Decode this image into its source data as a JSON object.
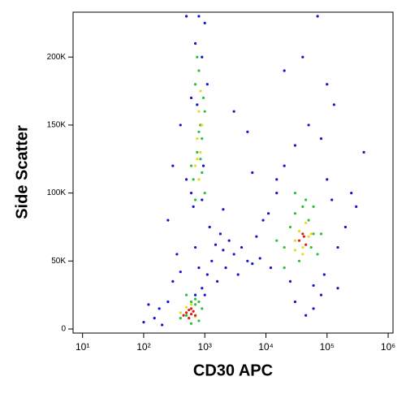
{
  "chart_data": {
    "type": "scatter",
    "x_label": "CD30 APC",
    "y_label": "Side Scatter",
    "xscale": "log",
    "xlim": [
      7,
      1200000
    ],
    "ylim": [
      -3000,
      233000
    ],
    "xticks": [
      {
        "value": 10,
        "label": "10¹"
      },
      {
        "value": 100,
        "label": "10²"
      },
      {
        "value": 1000,
        "label": "10³"
      },
      {
        "value": 10000,
        "label": "10⁴"
      },
      {
        "value": 100000,
        "label": "10⁵"
      },
      {
        "value": 1000000,
        "label": "10⁶"
      }
    ],
    "yticks": [
      0,
      {
        "value": 50000,
        "label": "50K"
      },
      {
        "value": 100000,
        "label": "100K"
      },
      {
        "value": 150000,
        "label": "150K"
      },
      {
        "value": 200000,
        "label": "200K"
      }
    ],
    "series": [
      {
        "color": "#1414c8",
        "x": [
          150,
          200,
          250,
          300,
          180,
          400,
          700,
          350,
          1200,
          900,
          600,
          800,
          1000,
          700,
          900,
          1100,
          600,
          750,
          850,
          950,
          500,
          650,
          1500,
          2000,
          2500,
          3000,
          4000,
          5000,
          6000,
          7000,
          1800,
          2200,
          3500,
          8000,
          12000,
          15000,
          20000,
          30000,
          50000,
          80000,
          100000,
          120000,
          9000,
          11000,
          25000,
          60000,
          90000,
          150000,
          200000,
          300000,
          400000,
          3000,
          5000,
          20000,
          40000,
          70000,
          100000,
          130000,
          1300,
          1600,
          700,
          800,
          900,
          1000,
          1100,
          500,
          400,
          300,
          250,
          150000,
          80000,
          30000,
          15000,
          6000,
          2000,
          120,
          100,
          60000,
          45000,
          250000
        ],
        "values": [
          8000,
          3000,
          20000,
          35000,
          15000,
          42000,
          60000,
          55000,
          75000,
          95000,
          100000,
          230000,
          225000,
          210000,
          200000,
          180000,
          170000,
          165000,
          150000,
          120000,
          110000,
          90000,
          62000,
          58000,
          65000,
          55000,
          60000,
          50000,
          48000,
          68000,
          70000,
          45000,
          40000,
          52000,
          45000,
          110000,
          120000,
          135000,
          150000,
          140000,
          110000,
          95000,
          80000,
          85000,
          35000,
          32000,
          40000,
          60000,
          75000,
          90000,
          130000,
          160000,
          145000,
          190000,
          200000,
          230000,
          180000,
          165000,
          50000,
          35000,
          25000,
          45000,
          30000,
          25000,
          40000,
          230000,
          150000,
          120000,
          80000,
          30000,
          25000,
          20000,
          100000,
          115000,
          88000,
          18000,
          5000,
          15000,
          10000,
          100000
        ]
      },
      {
        "color": "#2cbf3c",
        "x": [
          500,
          600,
          700,
          800,
          900,
          1000,
          650,
          750,
          850,
          950,
          700,
          800,
          900,
          600,
          1000,
          750,
          850,
          800,
          700,
          900,
          20000,
          25000,
          30000,
          40000,
          50000,
          60000,
          70000,
          35000,
          45000,
          55000,
          400,
          500,
          600,
          700,
          800,
          20000,
          80000,
          15000,
          30000,
          60000
        ],
        "values": [
          10000,
          20000,
          22000,
          6000,
          15000,
          100000,
          110000,
          130000,
          150000,
          170000,
          180000,
          190000,
          140000,
          120000,
          160000,
          200000,
          125000,
          145000,
          95000,
          115000,
          60000,
          75000,
          85000,
          90000,
          80000,
          70000,
          55000,
          50000,
          95000,
          60000,
          8000,
          25000,
          4000,
          18000,
          20000,
          45000,
          70000,
          65000,
          100000,
          90000
        ]
      },
      {
        "color": "#e6dc1e",
        "x": [
          700,
          750,
          800,
          850,
          900,
          800,
          750,
          850,
          30000,
          35000,
          40000,
          45000,
          50000,
          40000,
          30000,
          55000,
          400,
          500,
          700,
          600
        ],
        "values": [
          120000,
          140000,
          160000,
          130000,
          150000,
          110000,
          125000,
          175000,
          65000,
          72000,
          60000,
          78000,
          68000,
          55000,
          58000,
          70000,
          12000,
          16000,
          9000,
          18000
        ]
      },
      {
        "color": "#e01e10",
        "x": [
          450,
          500,
          550,
          600,
          650,
          700,
          550,
          600,
          35000,
          40000,
          45000,
          42000
        ],
        "values": [
          10000,
          12000,
          14000,
          11000,
          13000,
          10000,
          8000,
          15000,
          65000,
          70000,
          62000,
          68000
        ]
      }
    ]
  }
}
